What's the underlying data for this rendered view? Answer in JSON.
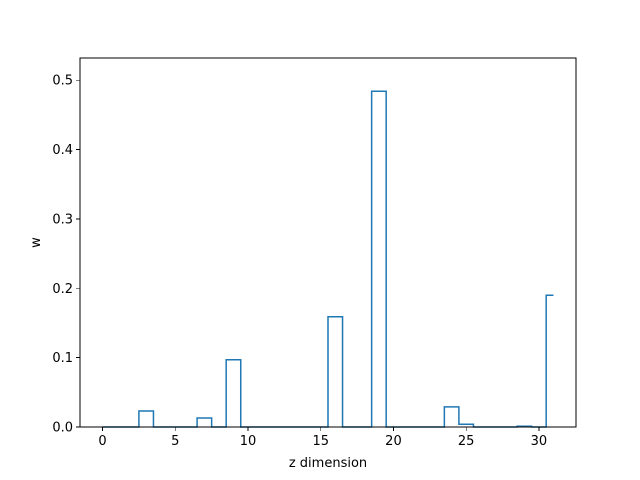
{
  "chart_data": {
    "type": "line",
    "drawstyle": "steps-mid",
    "title": "",
    "xlabel": "z dimension",
    "ylabel": "w",
    "xlim": [
      -1.55,
      32.55
    ],
    "ylim": [
      0,
      0.532
    ],
    "xticks": [
      0,
      5,
      10,
      15,
      20,
      25,
      30
    ],
    "yticks": [
      0.0,
      0.1,
      0.2,
      0.3,
      0.4,
      0.5
    ],
    "ytick_labels": [
      "0.0",
      "0.1",
      "0.2",
      "0.3",
      "0.4",
      "0.5"
    ],
    "grid": false,
    "line_color": "#1f77b4",
    "x": [
      0,
      1,
      2,
      3,
      4,
      5,
      6,
      7,
      8,
      9,
      10,
      11,
      12,
      13,
      14,
      15,
      16,
      17,
      18,
      19,
      20,
      21,
      22,
      23,
      24,
      25,
      26,
      27,
      28,
      29,
      30,
      31
    ],
    "y": [
      0,
      0,
      0,
      0.023,
      0,
      0,
      0,
      0.013,
      0,
      0.097,
      0,
      0,
      0,
      0,
      0,
      0,
      0.159,
      0,
      0,
      0.484,
      0,
      0,
      0,
      0,
      0.029,
      0.004,
      0,
      0,
      0,
      0.001,
      0,
      0.19
    ]
  }
}
